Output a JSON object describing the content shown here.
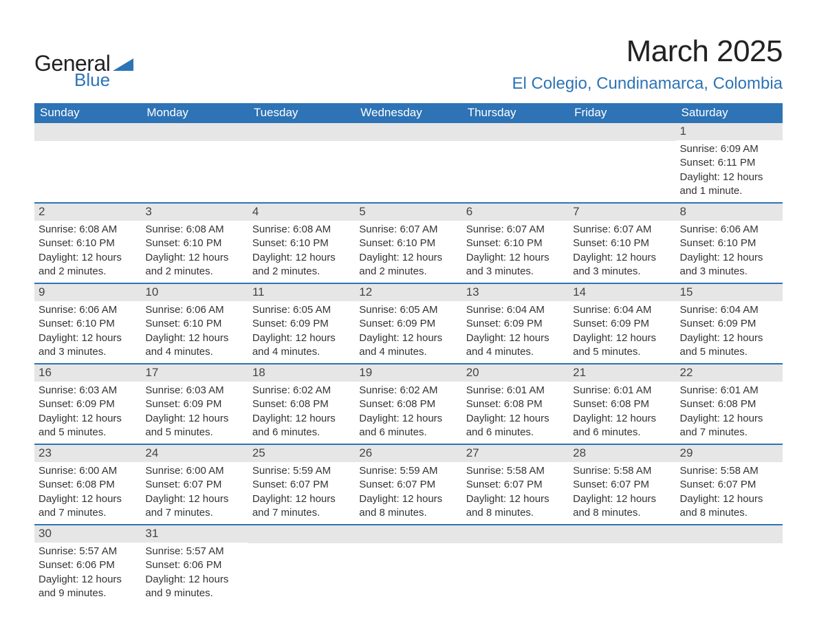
{
  "logo": {
    "word1": "General",
    "word2": "Blue",
    "accent_color": "#2d73b5",
    "text_color": "#222222"
  },
  "header": {
    "month_title": "March 2025",
    "location": "El Colegio, Cundinamarca, Colombia"
  },
  "colors": {
    "header_bar": "#2d73b5",
    "daynum_bg": "#e6e6e6",
    "week_divider": "#2d73b5",
    "background": "#ffffff",
    "body_text": "#333333"
  },
  "days_of_week": [
    "Sunday",
    "Monday",
    "Tuesday",
    "Wednesday",
    "Thursday",
    "Friday",
    "Saturday"
  ],
  "weeks": [
    [
      {
        "blank": true
      },
      {
        "blank": true
      },
      {
        "blank": true
      },
      {
        "blank": true
      },
      {
        "blank": true
      },
      {
        "blank": true
      },
      {
        "num": "1",
        "sunrise": "Sunrise: 6:09 AM",
        "sunset": "Sunset: 6:11 PM",
        "daylight1": "Daylight: 12 hours",
        "daylight2": "and 1 minute."
      }
    ],
    [
      {
        "num": "2",
        "sunrise": "Sunrise: 6:08 AM",
        "sunset": "Sunset: 6:10 PM",
        "daylight1": "Daylight: 12 hours",
        "daylight2": "and 2 minutes."
      },
      {
        "num": "3",
        "sunrise": "Sunrise: 6:08 AM",
        "sunset": "Sunset: 6:10 PM",
        "daylight1": "Daylight: 12 hours",
        "daylight2": "and 2 minutes."
      },
      {
        "num": "4",
        "sunrise": "Sunrise: 6:08 AM",
        "sunset": "Sunset: 6:10 PM",
        "daylight1": "Daylight: 12 hours",
        "daylight2": "and 2 minutes."
      },
      {
        "num": "5",
        "sunrise": "Sunrise: 6:07 AM",
        "sunset": "Sunset: 6:10 PM",
        "daylight1": "Daylight: 12 hours",
        "daylight2": "and 2 minutes."
      },
      {
        "num": "6",
        "sunrise": "Sunrise: 6:07 AM",
        "sunset": "Sunset: 6:10 PM",
        "daylight1": "Daylight: 12 hours",
        "daylight2": "and 3 minutes."
      },
      {
        "num": "7",
        "sunrise": "Sunrise: 6:07 AM",
        "sunset": "Sunset: 6:10 PM",
        "daylight1": "Daylight: 12 hours",
        "daylight2": "and 3 minutes."
      },
      {
        "num": "8",
        "sunrise": "Sunrise: 6:06 AM",
        "sunset": "Sunset: 6:10 PM",
        "daylight1": "Daylight: 12 hours",
        "daylight2": "and 3 minutes."
      }
    ],
    [
      {
        "num": "9",
        "sunrise": "Sunrise: 6:06 AM",
        "sunset": "Sunset: 6:10 PM",
        "daylight1": "Daylight: 12 hours",
        "daylight2": "and 3 minutes."
      },
      {
        "num": "10",
        "sunrise": "Sunrise: 6:06 AM",
        "sunset": "Sunset: 6:10 PM",
        "daylight1": "Daylight: 12 hours",
        "daylight2": "and 4 minutes."
      },
      {
        "num": "11",
        "sunrise": "Sunrise: 6:05 AM",
        "sunset": "Sunset: 6:09 PM",
        "daylight1": "Daylight: 12 hours",
        "daylight2": "and 4 minutes."
      },
      {
        "num": "12",
        "sunrise": "Sunrise: 6:05 AM",
        "sunset": "Sunset: 6:09 PM",
        "daylight1": "Daylight: 12 hours",
        "daylight2": "and 4 minutes."
      },
      {
        "num": "13",
        "sunrise": "Sunrise: 6:04 AM",
        "sunset": "Sunset: 6:09 PM",
        "daylight1": "Daylight: 12 hours",
        "daylight2": "and 4 minutes."
      },
      {
        "num": "14",
        "sunrise": "Sunrise: 6:04 AM",
        "sunset": "Sunset: 6:09 PM",
        "daylight1": "Daylight: 12 hours",
        "daylight2": "and 5 minutes."
      },
      {
        "num": "15",
        "sunrise": "Sunrise: 6:04 AM",
        "sunset": "Sunset: 6:09 PM",
        "daylight1": "Daylight: 12 hours",
        "daylight2": "and 5 minutes."
      }
    ],
    [
      {
        "num": "16",
        "sunrise": "Sunrise: 6:03 AM",
        "sunset": "Sunset: 6:09 PM",
        "daylight1": "Daylight: 12 hours",
        "daylight2": "and 5 minutes."
      },
      {
        "num": "17",
        "sunrise": "Sunrise: 6:03 AM",
        "sunset": "Sunset: 6:09 PM",
        "daylight1": "Daylight: 12 hours",
        "daylight2": "and 5 minutes."
      },
      {
        "num": "18",
        "sunrise": "Sunrise: 6:02 AM",
        "sunset": "Sunset: 6:08 PM",
        "daylight1": "Daylight: 12 hours",
        "daylight2": "and 6 minutes."
      },
      {
        "num": "19",
        "sunrise": "Sunrise: 6:02 AM",
        "sunset": "Sunset: 6:08 PM",
        "daylight1": "Daylight: 12 hours",
        "daylight2": "and 6 minutes."
      },
      {
        "num": "20",
        "sunrise": "Sunrise: 6:01 AM",
        "sunset": "Sunset: 6:08 PM",
        "daylight1": "Daylight: 12 hours",
        "daylight2": "and 6 minutes."
      },
      {
        "num": "21",
        "sunrise": "Sunrise: 6:01 AM",
        "sunset": "Sunset: 6:08 PM",
        "daylight1": "Daylight: 12 hours",
        "daylight2": "and 6 minutes."
      },
      {
        "num": "22",
        "sunrise": "Sunrise: 6:01 AM",
        "sunset": "Sunset: 6:08 PM",
        "daylight1": "Daylight: 12 hours",
        "daylight2": "and 7 minutes."
      }
    ],
    [
      {
        "num": "23",
        "sunrise": "Sunrise: 6:00 AM",
        "sunset": "Sunset: 6:08 PM",
        "daylight1": "Daylight: 12 hours",
        "daylight2": "and 7 minutes."
      },
      {
        "num": "24",
        "sunrise": "Sunrise: 6:00 AM",
        "sunset": "Sunset: 6:07 PM",
        "daylight1": "Daylight: 12 hours",
        "daylight2": "and 7 minutes."
      },
      {
        "num": "25",
        "sunrise": "Sunrise: 5:59 AM",
        "sunset": "Sunset: 6:07 PM",
        "daylight1": "Daylight: 12 hours",
        "daylight2": "and 7 minutes."
      },
      {
        "num": "26",
        "sunrise": "Sunrise: 5:59 AM",
        "sunset": "Sunset: 6:07 PM",
        "daylight1": "Daylight: 12 hours",
        "daylight2": "and 8 minutes."
      },
      {
        "num": "27",
        "sunrise": "Sunrise: 5:58 AM",
        "sunset": "Sunset: 6:07 PM",
        "daylight1": "Daylight: 12 hours",
        "daylight2": "and 8 minutes."
      },
      {
        "num": "28",
        "sunrise": "Sunrise: 5:58 AM",
        "sunset": "Sunset: 6:07 PM",
        "daylight1": "Daylight: 12 hours",
        "daylight2": "and 8 minutes."
      },
      {
        "num": "29",
        "sunrise": "Sunrise: 5:58 AM",
        "sunset": "Sunset: 6:07 PM",
        "daylight1": "Daylight: 12 hours",
        "daylight2": "and 8 minutes."
      }
    ],
    [
      {
        "num": "30",
        "sunrise": "Sunrise: 5:57 AM",
        "sunset": "Sunset: 6:06 PM",
        "daylight1": "Daylight: 12 hours",
        "daylight2": "and 9 minutes."
      },
      {
        "num": "31",
        "sunrise": "Sunrise: 5:57 AM",
        "sunset": "Sunset: 6:06 PM",
        "daylight1": "Daylight: 12 hours",
        "daylight2": "and 9 minutes."
      },
      {
        "blank": true
      },
      {
        "blank": true
      },
      {
        "blank": true
      },
      {
        "blank": true
      },
      {
        "blank": true
      }
    ]
  ]
}
